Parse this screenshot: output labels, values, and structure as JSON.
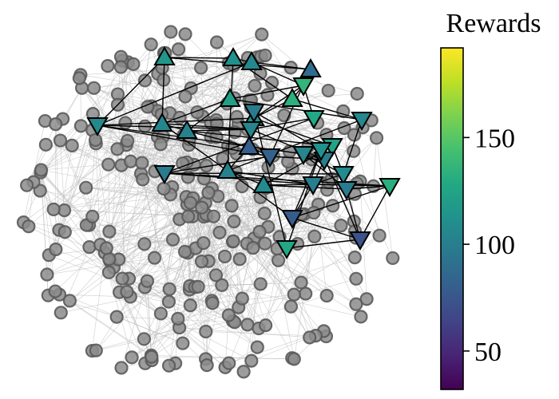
{
  "chart_data": {
    "type": "network",
    "colorbar": {
      "label": "Rewards",
      "colormap": "viridis",
      "vmin": 32,
      "vmax": 192,
      "ticks": [
        {
          "value": 50,
          "label": "50"
        },
        {
          "value": 100,
          "label": "100"
        },
        {
          "value": 150,
          "label": "150"
        }
      ]
    },
    "node_styles": {
      "inactive": {
        "marker": "circle",
        "color": "#8c8c8c"
      },
      "up": {
        "marker": "triangle-up"
      },
      "down": {
        "marker": "triangle-down"
      }
    },
    "highlighted_nodes": [
      {
        "id": "h1",
        "shape": "up",
        "reward": 116
      },
      {
        "id": "h2",
        "shape": "up",
        "reward": 112
      },
      {
        "id": "h3",
        "shape": "up",
        "reward": 106
      },
      {
        "id": "h4",
        "shape": "up",
        "reward": 88
      },
      {
        "id": "h5",
        "shape": "down",
        "reward": 136
      },
      {
        "id": "h6",
        "shape": "up",
        "reward": 133
      },
      {
        "id": "h7",
        "shape": "up",
        "reward": 122
      },
      {
        "id": "h8",
        "shape": "up",
        "reward": 114
      },
      {
        "id": "h9",
        "shape": "down",
        "reward": 128
      },
      {
        "id": "h10",
        "shape": "down",
        "reward": 106
      },
      {
        "id": "h11",
        "shape": "down",
        "reward": 106
      },
      {
        "id": "h12",
        "shape": "up",
        "reward": 105
      },
      {
        "id": "h13",
        "shape": "up",
        "reward": 103
      },
      {
        "id": "h14",
        "shape": "down",
        "reward": 104
      },
      {
        "id": "h15",
        "shape": "up",
        "reward": 80
      },
      {
        "id": "h16",
        "shape": "down",
        "reward": 82
      },
      {
        "id": "h17",
        "shape": "down",
        "reward": 124
      },
      {
        "id": "h18",
        "shape": "down",
        "reward": 104
      },
      {
        "id": "h19",
        "shape": "down",
        "reward": 100
      },
      {
        "id": "h20",
        "shape": "down",
        "reward": 108
      },
      {
        "id": "h21",
        "shape": "down",
        "reward": 98
      },
      {
        "id": "h22",
        "shape": "up",
        "reward": 102
      },
      {
        "id": "h23",
        "shape": "up",
        "reward": 108
      },
      {
        "id": "h24",
        "shape": "down",
        "reward": 100
      },
      {
        "id": "h25",
        "shape": "down",
        "reward": 98
      },
      {
        "id": "h26",
        "shape": "down",
        "reward": 132
      },
      {
        "id": "h27",
        "shape": "down",
        "reward": 78
      },
      {
        "id": "h28",
        "shape": "down",
        "reward": 72
      },
      {
        "id": "h29",
        "shape": "down",
        "reward": 128
      },
      {
        "id": "h30",
        "shape": "down",
        "reward": 98
      },
      {
        "id": "h31",
        "shape": "down",
        "reward": 112
      }
    ],
    "highlighted_edges": [
      [
        "h1",
        "h2"
      ],
      [
        "h1",
        "h4"
      ],
      [
        "h1",
        "h12"
      ],
      [
        "h1",
        "h11"
      ],
      [
        "h2",
        "h3"
      ],
      [
        "h2",
        "h6"
      ],
      [
        "h2",
        "h22"
      ],
      [
        "h3",
        "h4"
      ],
      [
        "h3",
        "h5"
      ],
      [
        "h3",
        "h11"
      ],
      [
        "h4",
        "h5"
      ],
      [
        "h4",
        "h16"
      ],
      [
        "h5",
        "h6"
      ],
      [
        "h5",
        "h7"
      ],
      [
        "h5",
        "h8"
      ],
      [
        "h5",
        "h9"
      ],
      [
        "h6",
        "h8"
      ],
      [
        "h6",
        "h10"
      ],
      [
        "h7",
        "h12"
      ],
      [
        "h7",
        "h13"
      ],
      [
        "h7",
        "h10"
      ],
      [
        "h8",
        "h11"
      ],
      [
        "h8",
        "h17"
      ],
      [
        "h9",
        "h14"
      ],
      [
        "h9",
        "h21"
      ],
      [
        "h10",
        "h20"
      ],
      [
        "h10",
        "h22"
      ],
      [
        "h11",
        "h14"
      ],
      [
        "h11",
        "h16"
      ],
      [
        "h11",
        "h18"
      ],
      [
        "h12",
        "h13"
      ],
      [
        "h12",
        "h14"
      ],
      [
        "h13",
        "h14"
      ],
      [
        "h13",
        "h15"
      ],
      [
        "h13",
        "h17"
      ],
      [
        "h14",
        "h15"
      ],
      [
        "h14",
        "h19"
      ],
      [
        "h15",
        "h22"
      ],
      [
        "h15",
        "h16"
      ],
      [
        "h16",
        "h19"
      ],
      [
        "h16",
        "h21"
      ],
      [
        "h17",
        "h19"
      ],
      [
        "h17",
        "h20"
      ],
      [
        "h17",
        "h23"
      ],
      [
        "h18",
        "h19"
      ],
      [
        "h18",
        "h20"
      ],
      [
        "h19",
        "h24"
      ],
      [
        "h20",
        "h21"
      ],
      [
        "h20",
        "h24"
      ],
      [
        "h21",
        "h24"
      ],
      [
        "h22",
        "h23"
      ],
      [
        "h22",
        "h24"
      ],
      [
        "h23",
        "h24"
      ],
      [
        "h23",
        "h25"
      ],
      [
        "h24",
        "h26"
      ],
      [
        "h24",
        "h27"
      ],
      [
        "h25",
        "h26"
      ],
      [
        "h25",
        "h28"
      ],
      [
        "h26",
        "h27"
      ],
      [
        "h26",
        "h28"
      ],
      [
        "h27",
        "h28"
      ],
      [
        "h27",
        "h31"
      ],
      [
        "h28",
        "h29"
      ],
      [
        "h28",
        "h31"
      ],
      [
        "h29",
        "h30"
      ],
      [
        "h29",
        "h31"
      ],
      [
        "h30",
        "h31"
      ],
      [
        "h21",
        "h26"
      ],
      [
        "h18",
        "h25"
      ],
      [
        "h12",
        "h27"
      ]
    ],
    "background_node_count": 290
  }
}
